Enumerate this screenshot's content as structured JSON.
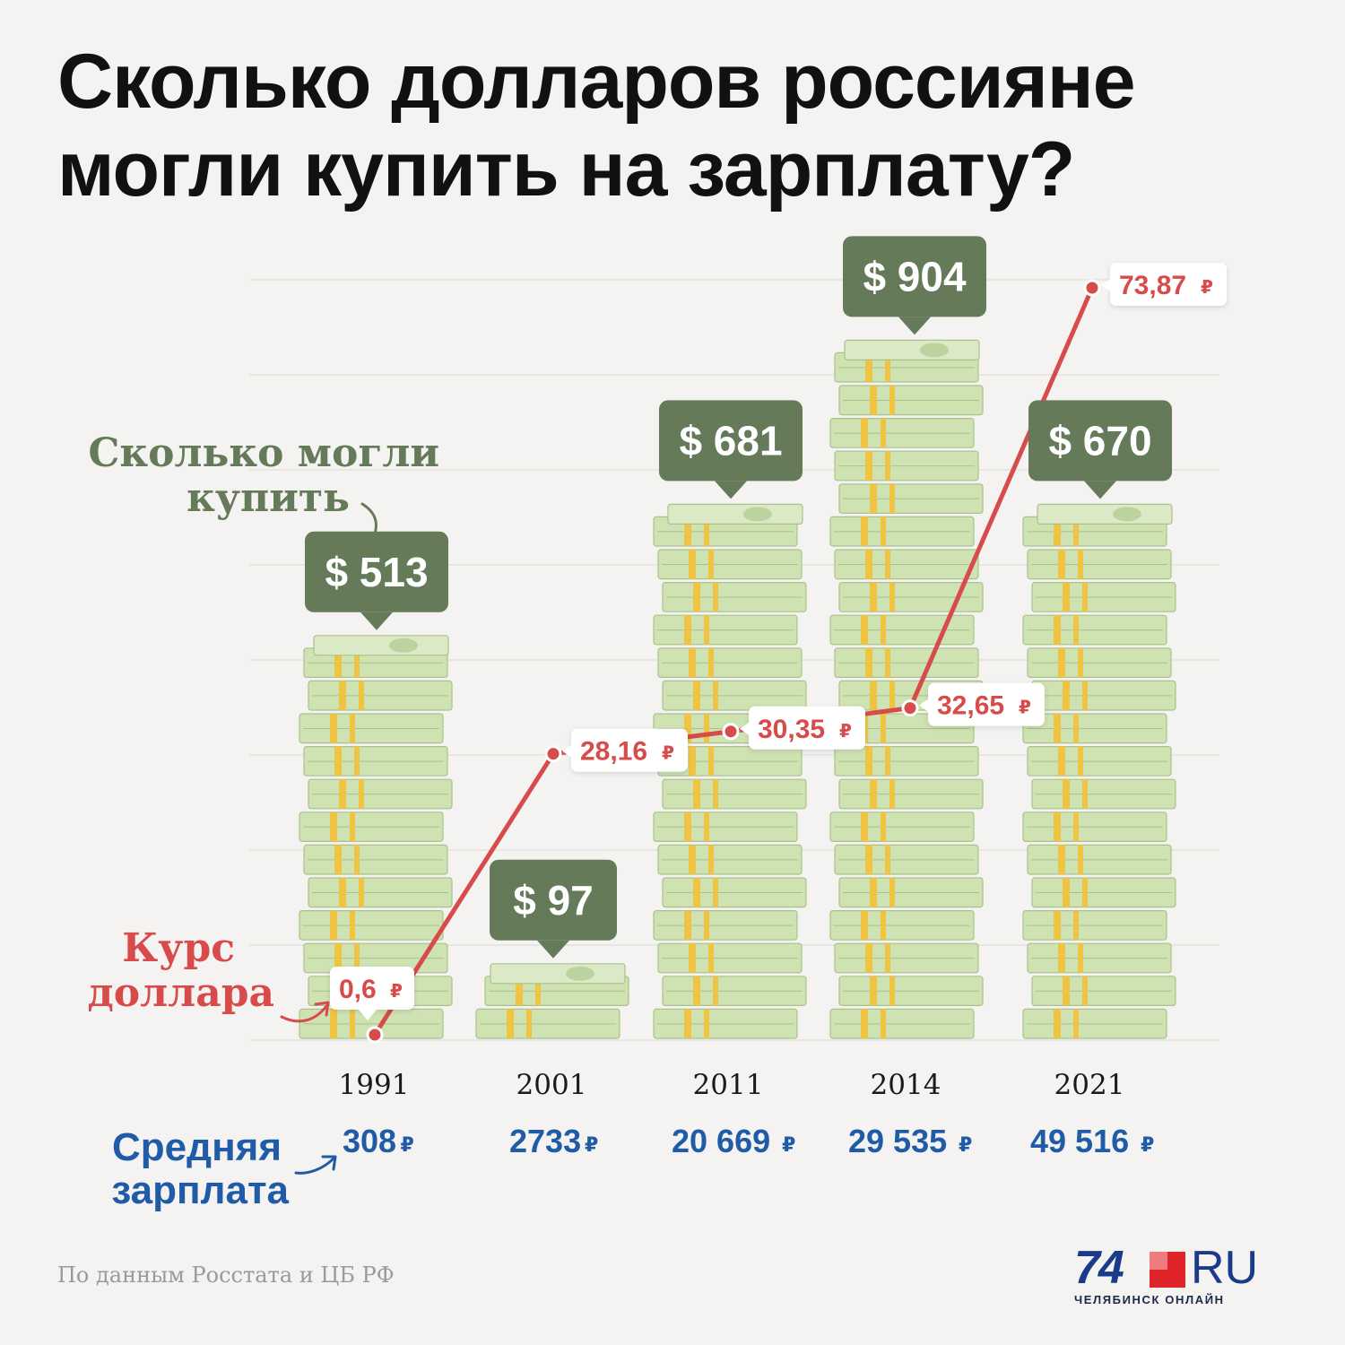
{
  "title": "Сколько долларов россияне могли купить на зарплату?",
  "chart_data": {
    "type": "bar",
    "categories": [
      "1991",
      "2001",
      "2011",
      "2014",
      "2021"
    ],
    "series": [
      {
        "name": "Сколько могли купить",
        "values": [
          513,
          97,
          681,
          904,
          670
        ],
        "labels": [
          "$ 513",
          "$ 97",
          "$ 681",
          "$ 904",
          "$ 670"
        ]
      },
      {
        "name": "Курс доллара",
        "type": "line",
        "values": [
          0.6,
          28.16,
          30.35,
          32.65,
          73.87
        ],
        "labels": [
          "0,6",
          "28,16",
          "30,35",
          "32,65",
          "73,87"
        ]
      },
      {
        "name": "Средняя зарплата",
        "values": [
          308,
          2733,
          20669,
          29535,
          49516
        ],
        "labels": [
          "308",
          "2733",
          "20 669",
          "29 535",
          "49 516"
        ]
      }
    ],
    "currency_symbol": "₽",
    "grid": true
  },
  "annotations": {
    "dollars_label": [
      "Сколько могли",
      "купить"
    ],
    "rate_label": [
      "Курс",
      "доллара"
    ],
    "salary_label": [
      "Средняя",
      "зарплата"
    ]
  },
  "colors": {
    "dollars": "#647a59",
    "rate": "#d74b4b",
    "salary": "#1f5ba6",
    "money": "#cfe2b2"
  },
  "footer": {
    "source": "По данным Росстата и ЦБ РФ",
    "logo_number": "74",
    "logo_suffix": "RU",
    "logo_subtitle": "ЧЕЛЯБИНСК ОНЛАЙН"
  }
}
